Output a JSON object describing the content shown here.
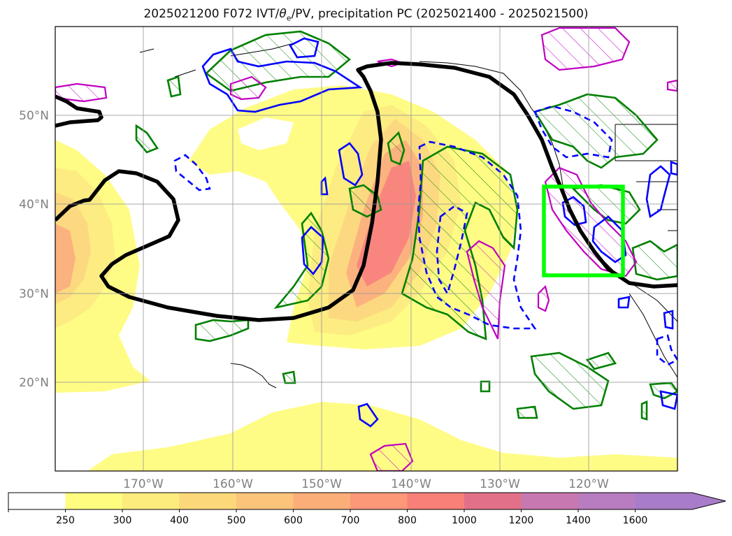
{
  "title": {
    "prefix": "2025021200 F072 IVT/",
    "theta": "θ",
    "theta_sub": "e",
    "suffix": "/PV, precipitation PC (2025021400 - 2025021500)"
  },
  "map": {
    "lat_labels": [
      "50°N",
      "40°N",
      "30°N",
      "20°N"
    ],
    "lon_labels": [
      "170°W",
      "160°W",
      "150°W",
      "140°W",
      "130°W",
      "120°W"
    ],
    "extent": {
      "lon": [
        -180,
        -110
      ],
      "lat": [
        10,
        60
      ]
    },
    "highlight_box": {
      "lon": [
        -125,
        -116
      ],
      "lat": [
        32,
        42
      ],
      "color": "#00ff00"
    },
    "contour_colors": {
      "theta_e": "#000000",
      "pv": "#0000ff",
      "precip_pos": "#008000",
      "precip_neg": "#c000c0",
      "coast": "#000000"
    }
  },
  "colorbar": {
    "levels": [
      "250",
      "300",
      "400",
      "500",
      "600",
      "700",
      "800",
      "1000",
      "1200",
      "1400",
      "1600"
    ],
    "colors": [
      "#ffffff",
      "#fffc80",
      "#fcec7c",
      "#fcd87a",
      "#fcc47a",
      "#fcae78",
      "#fc9878",
      "#f88078",
      "#e27088",
      "#c878b0",
      "#b87cc0",
      "#a87cc8"
    ],
    "extend": "max"
  }
}
